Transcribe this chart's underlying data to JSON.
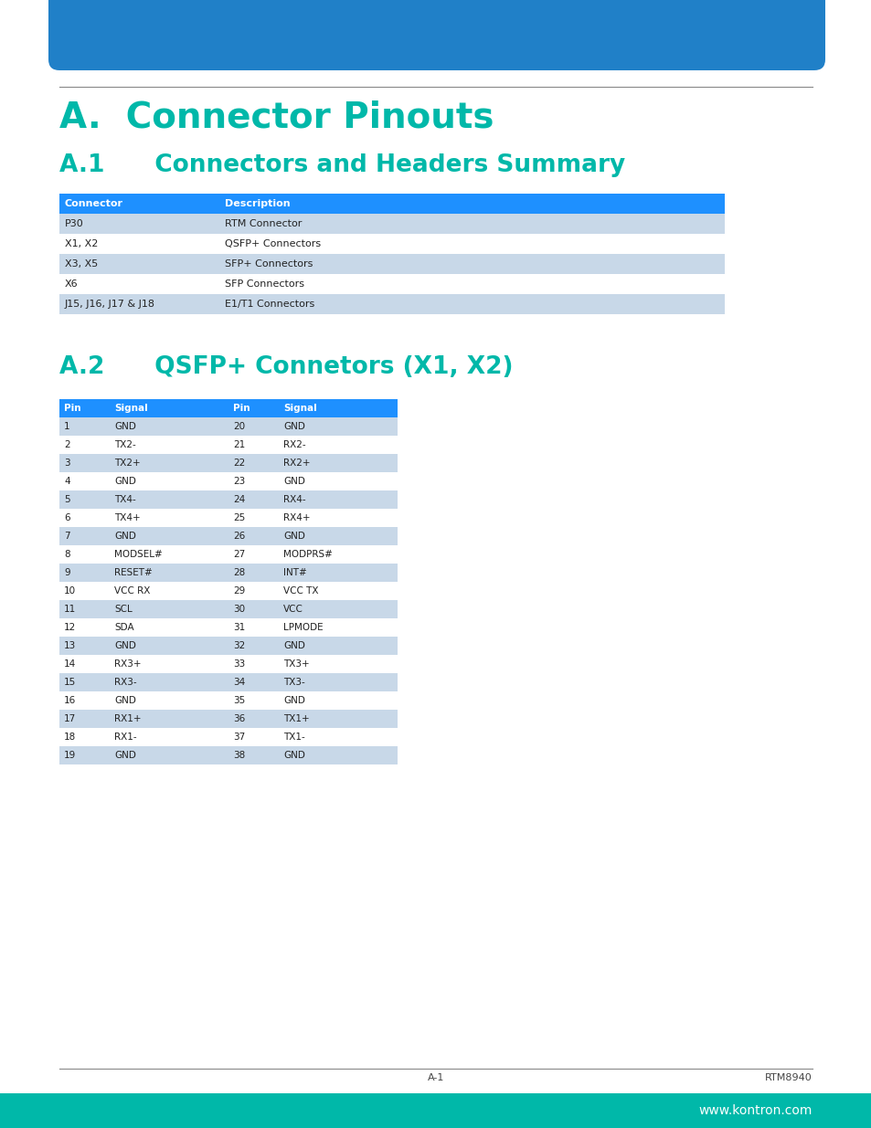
{
  "title_main": "A.  Connector Pinouts",
  "title_sub1": "A.1      Connectors and Headers Summary",
  "title_sub2": "A.2      QSFP+ Connetors (X1, X2)",
  "title_color": "#00B8A9",
  "header_bg": "#1E90FF",
  "header_text_color": "#FFFFFF",
  "row_odd_bg": "#C8D8E8",
  "row_even_bg": "#FFFFFF",
  "table1_headers": [
    "Connector",
    "Description"
  ],
  "table1_data": [
    [
      "P30",
      "RTM Connector"
    ],
    [
      "X1, X2",
      "QSFP+ Connectors"
    ],
    [
      "X3, X5",
      "SFP+ Connectors"
    ],
    [
      "X6",
      "SFP Connectors"
    ],
    [
      "J15, J16, J17 & J18",
      "E1/T1 Connectors"
    ]
  ],
  "table2_headers": [
    "Pin",
    "Signal",
    "Pin",
    "Signal"
  ],
  "table2_data": [
    [
      "1",
      "GND",
      "20",
      "GND"
    ],
    [
      "2",
      "TX2-",
      "21",
      "RX2-"
    ],
    [
      "3",
      "TX2+",
      "22",
      "RX2+"
    ],
    [
      "4",
      "GND",
      "23",
      "GND"
    ],
    [
      "5",
      "TX4-",
      "24",
      "RX4-"
    ],
    [
      "6",
      "TX4+",
      "25",
      "RX4+"
    ],
    [
      "7",
      "GND",
      "26",
      "GND"
    ],
    [
      "8",
      "MODSEL#",
      "27",
      "MODPRS#"
    ],
    [
      "9",
      "RESET#",
      "28",
      "INT#"
    ],
    [
      "10",
      "VCC RX",
      "29",
      "VCC TX"
    ],
    [
      "11",
      "SCL",
      "30",
      "VCC"
    ],
    [
      "12",
      "SDA",
      "31",
      "LPMODE"
    ],
    [
      "13",
      "GND",
      "32",
      "GND"
    ],
    [
      "14",
      "RX3+",
      "33",
      "TX3+"
    ],
    [
      "15",
      "RX3-",
      "34",
      "TX3-"
    ],
    [
      "16",
      "GND",
      "35",
      "GND"
    ],
    [
      "17",
      "RX1+",
      "36",
      "TX1+"
    ],
    [
      "18",
      "RX1-",
      "37",
      "TX1-"
    ],
    [
      "19",
      "GND",
      "38",
      "GND"
    ]
  ],
  "footer_left": "A-1",
  "footer_right": "RTM8940",
  "footer_bar_color": "#00B8A9",
  "footer_bar_text": "www.kontron.com",
  "top_bar_color": "#2080C8",
  "page_bg": "#FFFFFF",
  "line_color": "#888888"
}
